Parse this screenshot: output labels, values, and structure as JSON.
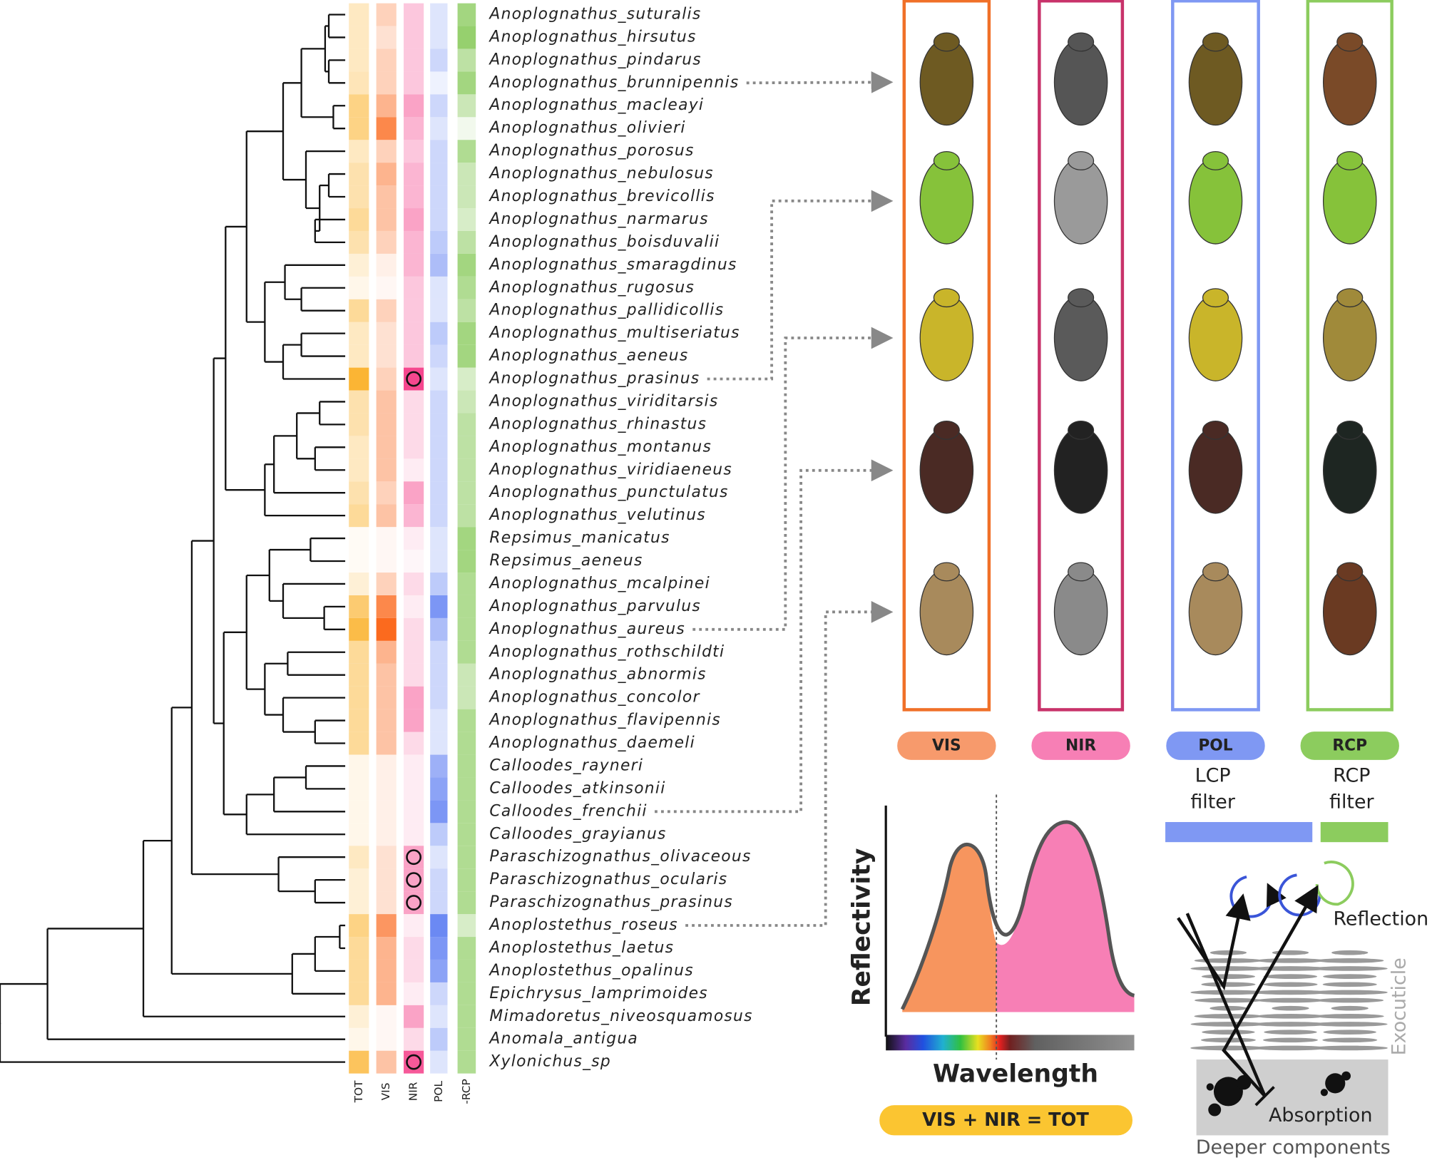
{
  "species": [
    "Anoplognathus_suturalis",
    "Anoplognathus_hirsutus",
    "Anoplognathus_pindarus",
    "Anoplognathus_brunnipennis",
    "Anoplognathus_macleayi",
    "Anoplognathus_olivieri",
    "Anoplognathus_porosus",
    "Anoplognathus_nebulosus",
    "Anoplognathus_brevicollis",
    "Anoplognathus_narmarus",
    "Anoplognathus_boisduvalii",
    "Anoplognathus_smaragdinus",
    "Anoplognathus_rugosus",
    "Anoplognathus_pallidicollis",
    "Anoplognathus_multiseriatus",
    "Anoplognathus_aeneus",
    "Anoplognathus_prasinus",
    "Anoplognathus_viriditarsis",
    "Anoplognathus_rhinastus",
    "Anoplognathus_montanus",
    "Anoplognathus_viridiaeneus",
    "Anoplognathus_punctulatus",
    "Anoplognathus_velutinus",
    "Repsimus_manicatus",
    "Repsimus_aeneus",
    "Anoplognathus_mcalpinei",
    "Anoplognathus_parvulus",
    "Anoplognathus_aureus",
    "Anoplognathus_rothschildti",
    "Anoplognathus_abnormis",
    "Anoplognathus_concolor",
    "Anoplognathus_flavipennis",
    "Anoplognathus_daemeli",
    "Calloodes_rayneri",
    "Calloodes_atkinsonii",
    "Calloodes_frenchii",
    "Calloodes_grayianus",
    "Paraschizognathus_olivaceous",
    "Paraschizognathus_ocularis",
    "Paraschizognathus_prasinus",
    "Anoplostethus_roseus",
    "Anoplostethus_laetus",
    "Anoplostethus_opalinus",
    "Epichrysus_lamprimoides",
    "Mimadoretus_niveosquamosus",
    "Anomala_antigua",
    "Xylonichus_sp"
  ],
  "heatmap": {
    "columns": [
      {
        "name": "TOT",
        "color": "#fbb534",
        "values": [
          0.3,
          0.3,
          0.3,
          0.35,
          0.6,
          0.6,
          0.3,
          0.4,
          0.4,
          0.5,
          0.4,
          0.2,
          0.1,
          0.5,
          0.3,
          0.3,
          1.0,
          0.4,
          0.4,
          0.3,
          0.3,
          0.4,
          0.5,
          0.05,
          0.05,
          0.2,
          0.7,
          0.9,
          0.5,
          0.5,
          0.5,
          0.5,
          0.5,
          0.1,
          0.1,
          0.1,
          0.1,
          0.3,
          0.2,
          0.2,
          0.6,
          0.5,
          0.5,
          0.5,
          0.2,
          0.1,
          0.8
        ]
      },
      {
        "name": "VIS",
        "color": "#fb6a1e",
        "values": [
          0.3,
          0.2,
          0.3,
          0.3,
          0.5,
          0.8,
          0.3,
          0.5,
          0.4,
          0.4,
          0.3,
          0.1,
          0.05,
          0.3,
          0.2,
          0.2,
          0.3,
          0.4,
          0.4,
          0.4,
          0.4,
          0.3,
          0.4,
          0.05,
          0.05,
          0.3,
          0.8,
          1.0,
          0.5,
          0.4,
          0.4,
          0.4,
          0.4,
          0.1,
          0.1,
          0.1,
          0.1,
          0.2,
          0.2,
          0.2,
          0.7,
          0.5,
          0.5,
          0.5,
          0.05,
          0.05,
          0.4
        ]
      },
      {
        "name": "NIR",
        "color": "#f5478e",
        "values": [
          0.3,
          0.3,
          0.3,
          0.3,
          0.5,
          0.4,
          0.3,
          0.4,
          0.4,
          0.5,
          0.4,
          0.4,
          0.3,
          0.3,
          0.3,
          0.3,
          1.0,
          0.2,
          0.2,
          0.2,
          0.1,
          0.5,
          0.4,
          0.1,
          0.05,
          0.2,
          0.1,
          0.2,
          0.2,
          0.2,
          0.5,
          0.5,
          0.2,
          0.1,
          0.1,
          0.1,
          0.1,
          0.5,
          0.5,
          0.5,
          0.1,
          0.2,
          0.2,
          0.1,
          0.5,
          0.2,
          0.9
        ]
      },
      {
        "name": "POL",
        "color": "#5b7cf2",
        "values": [
          0.2,
          0.2,
          0.3,
          0.1,
          0.3,
          0.2,
          0.3,
          0.3,
          0.3,
          0.3,
          0.4,
          0.5,
          0.2,
          0.2,
          0.4,
          0.3,
          0.2,
          0.3,
          0.3,
          0.3,
          0.3,
          0.3,
          0.3,
          0.2,
          0.2,
          0.4,
          0.8,
          0.5,
          0.3,
          0.3,
          0.3,
          0.2,
          0.2,
          0.6,
          0.7,
          0.8,
          0.4,
          0.2,
          0.3,
          0.3,
          0.9,
          0.8,
          0.7,
          0.3,
          0.2,
          0.4,
          0.2
        ]
      },
      {
        "name": "-RCP",
        "color": "#7cc44a",
        "values": [
          0.7,
          0.8,
          0.5,
          0.7,
          0.4,
          0.1,
          0.6,
          0.4,
          0.4,
          0.3,
          0.5,
          0.7,
          0.6,
          0.5,
          0.7,
          0.7,
          0.3,
          0.4,
          0.5,
          0.5,
          0.5,
          0.5,
          0.5,
          0.7,
          0.7,
          0.6,
          0.6,
          0.6,
          0.6,
          0.4,
          0.4,
          0.6,
          0.6,
          0.6,
          0.6,
          0.6,
          0.6,
          0.6,
          0.6,
          0.6,
          0.3,
          0.6,
          0.6,
          0.6,
          0.6,
          0.6,
          0.6
        ]
      }
    ],
    "circled": [
      16,
      37,
      38,
      39,
      46
    ]
  },
  "photo_species": [
    3,
    16,
    27,
    35,
    40
  ],
  "photo_panels": [
    {
      "label": "VIS",
      "color": "#f07028",
      "pill": "#f79a6c",
      "beetles": [
        "#6e5a22",
        "#86c23a",
        "#c9b52a",
        "#4a2a24",
        "#a88a5c"
      ]
    },
    {
      "label": "NIR",
      "color": "#c8326a",
      "pill": "#f77fb5",
      "beetles": [
        "#555555",
        "#9a9a9a",
        "#5a5a5a",
        "#222222",
        "#8a8a8a"
      ]
    },
    {
      "label": "POL",
      "color": "#7f98f3",
      "pill": "#7f98f3",
      "beetles": [
        "#6e5a22",
        "#86c23a",
        "#c9b52a",
        "#4a2a24",
        "#a88a5c"
      ]
    },
    {
      "label": "RCP",
      "color": "#8ccc5e",
      "pill": "#8ccc5e",
      "beetles": [
        "#7a4a28",
        "#86c23a",
        "#a08a3a",
        "#1e2622",
        "#6a3a22"
      ]
    }
  ],
  "filters": [
    [
      "LCP",
      "filter"
    ],
    [
      "RCP",
      "filter"
    ]
  ],
  "spectrum": {
    "y_label": "Reflectivity",
    "x_label": "Wavelength",
    "equation": "VIS +  NIR = TOT"
  },
  "mechanism": {
    "reflection": "Reflection",
    "exocuticle": "Exocuticle",
    "absorption": "Absorption",
    "deeper": "Deeper components"
  }
}
